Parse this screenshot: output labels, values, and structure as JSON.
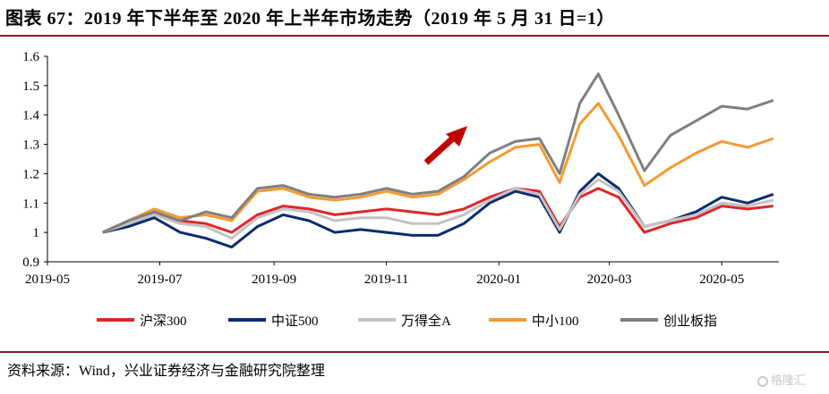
{
  "title": "图表 67：2019 年下半年至 2020 年上半年市场走势（2019 年 5 月 31 日=1）",
  "source": "资料来源：Wind，兴业证券经济与金融研究院整理",
  "watermark": "格隆汇",
  "chart_data": {
    "type": "line",
    "x_tick_labels": [
      "2019-05",
      "2019-07",
      "2019-09",
      "2019-11",
      "2020-01",
      "2020-03",
      "2020-05"
    ],
    "y_tick_labels": [
      "0.9",
      "1",
      "1.1",
      "1.2",
      "1.3",
      "1.4",
      "1.5",
      "1.6"
    ],
    "ylim": [
      0.9,
      1.6
    ],
    "grid": false,
    "legend_position": "bottom",
    "annotation": "red arrow pointing up-right",
    "x": [
      "2019-05-31",
      "2019-06-14",
      "2019-06-28",
      "2019-07-12",
      "2019-07-26",
      "2019-08-09",
      "2019-08-23",
      "2019-09-06",
      "2019-09-20",
      "2019-10-04",
      "2019-10-18",
      "2019-11-01",
      "2019-11-15",
      "2019-11-29",
      "2019-12-13",
      "2019-12-27",
      "2020-01-10",
      "2020-01-23",
      "2020-02-03",
      "2020-02-14",
      "2020-02-24",
      "2020-03-06",
      "2020-03-20",
      "2020-04-03",
      "2020-04-17",
      "2020-05-01",
      "2020-05-15",
      "2020-05-29"
    ],
    "series": [
      {
        "name": "沪深300",
        "color": "#e0262b",
        "values": [
          1.0,
          1.03,
          1.06,
          1.04,
          1.03,
          1.0,
          1.06,
          1.09,
          1.08,
          1.06,
          1.07,
          1.08,
          1.07,
          1.06,
          1.08,
          1.12,
          1.15,
          1.14,
          1.02,
          1.12,
          1.15,
          1.12,
          1.0,
          1.03,
          1.05,
          1.09,
          1.08,
          1.09
        ]
      },
      {
        "name": "中证500",
        "color": "#0c2c6e",
        "values": [
          1.0,
          1.02,
          1.05,
          1.0,
          0.98,
          0.95,
          1.02,
          1.06,
          1.04,
          1.0,
          1.01,
          1.0,
          0.99,
          0.99,
          1.03,
          1.1,
          1.14,
          1.12,
          1.0,
          1.14,
          1.2,
          1.15,
          1.02,
          1.04,
          1.07,
          1.12,
          1.1,
          1.13
        ]
      },
      {
        "name": "万得全A",
        "color": "#c3c3c3",
        "values": [
          1.0,
          1.03,
          1.06,
          1.03,
          1.02,
          0.98,
          1.05,
          1.08,
          1.07,
          1.04,
          1.05,
          1.05,
          1.03,
          1.03,
          1.06,
          1.11,
          1.15,
          1.13,
          1.01,
          1.13,
          1.18,
          1.14,
          1.02,
          1.04,
          1.06,
          1.1,
          1.09,
          1.11
        ]
      },
      {
        "name": "中小100",
        "color": "#f59a32",
        "values": [
          1.0,
          1.04,
          1.08,
          1.05,
          1.06,
          1.04,
          1.14,
          1.15,
          1.12,
          1.11,
          1.12,
          1.14,
          1.12,
          1.13,
          1.18,
          1.24,
          1.29,
          1.3,
          1.17,
          1.37,
          1.44,
          1.33,
          1.16,
          1.22,
          1.27,
          1.31,
          1.29,
          1.32
        ]
      },
      {
        "name": "创业板指",
        "color": "#7f7f7f",
        "values": [
          1.0,
          1.04,
          1.07,
          1.04,
          1.07,
          1.05,
          1.15,
          1.16,
          1.13,
          1.12,
          1.13,
          1.15,
          1.13,
          1.14,
          1.19,
          1.27,
          1.31,
          1.32,
          1.2,
          1.44,
          1.54,
          1.4,
          1.21,
          1.33,
          1.38,
          1.43,
          1.42,
          1.45
        ]
      }
    ]
  }
}
